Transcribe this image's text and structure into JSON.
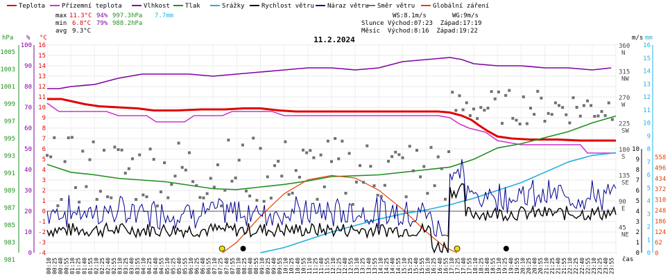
{
  "legend": [
    {
      "label": "Teplota",
      "color": "#e00000"
    },
    {
      "label": "Přízemní teplota",
      "color": "#cc33cc"
    },
    {
      "label": "Vlhkost",
      "color": "#8000a0"
    },
    {
      "label": "Tlak",
      "color": "#209020"
    },
    {
      "label": "Srážky",
      "color": "#20b0e0"
    },
    {
      "label": "Rychlost větru",
      "color": "#000000"
    },
    {
      "label": "Náraz větru",
      "color": "#000090"
    },
    {
      "label": "Směr větru",
      "color": "#707070"
    },
    {
      "label": "Globální záření",
      "color": "#e04000"
    }
  ],
  "stats": {
    "max_label": "max",
    "min_label": "min",
    "avg_label": "avg",
    "max_temp": "11.3°C",
    "max_hum": "94%",
    "max_press": "997.3hPa",
    "rain": "7.7mm",
    "min_temp": "6.8°C",
    "min_hum": "79%",
    "min_press": "988.2hPa",
    "avg_temp": "9.3°C"
  },
  "info": {
    "ws": "WS:8.1m/s",
    "wg": "WG:9m/s",
    "sun": "Slunce Východ:07:23  Západ:17:19",
    "moon": "Měsíc  Východ:8:16  Západ:19:22"
  },
  "title": "11.2.2024",
  "axes": {
    "hpa_label": "hPa",
    "pct_label": "%",
    "temp_label": "°C",
    "ms_label": "m/s",
    "mm_label": "mm",
    "time_label": "čas",
    "hpa_ticks": [
      "1005",
      "1003",
      "1001",
      "999",
      "997",
      "995",
      "993",
      "991",
      "989",
      "987",
      "985",
      "983",
      "981"
    ],
    "pct_ticks": [
      "100",
      "90",
      "80",
      "70",
      "60",
      "50",
      "40",
      "30",
      "20",
      "10",
      "0"
    ],
    "temp_ticks": [
      "16",
      "15",
      "14",
      "13",
      "12",
      "11",
      "10",
      "9",
      "8",
      "7",
      "6",
      "5",
      "4",
      "3",
      "2",
      "1",
      "0",
      "-1",
      "-2",
      "-3",
      "-4"
    ],
    "dir_ticks": [
      {
        "deg": "360",
        "name": "N"
      },
      {
        "deg": "315",
        "name": "NW"
      },
      {
        "deg": "270",
        "name": "W"
      },
      {
        "deg": "225",
        "name": "SW"
      },
      {
        "deg": "180",
        "name": "S"
      },
      {
        "deg": "135",
        "name": "SE"
      },
      {
        "deg": "90",
        "name": "E"
      },
      {
        "deg": "45",
        "name": "NE"
      }
    ],
    "ms_ticks": [
      "10",
      "9",
      "8",
      "7",
      "6",
      "5",
      "4",
      "3",
      "2",
      "1",
      "0"
    ],
    "mm_ticks": [
      "16",
      "15",
      "14",
      "13",
      "12",
      "11",
      "10",
      "9",
      "8",
      "7",
      "6",
      "5",
      "4",
      "3",
      "2",
      "1",
      "0"
    ],
    "rad_ticks": [
      "558",
      "496",
      "434",
      "372",
      "310",
      "248",
      "186",
      "124",
      "62",
      "0"
    ],
    "time_ticks": [
      "00:10",
      "00:25",
      "00:40",
      "00:55",
      "01:10",
      "01:25",
      "01:40",
      "01:55",
      "02:10",
      "02:25",
      "02:40",
      "02:55",
      "03:10",
      "03:25",
      "03:40",
      "03:55",
      "04:10",
      "04:25",
      "04:40",
      "04:55",
      "05:10",
      "05:25",
      "05:40",
      "05:55",
      "06:10",
      "06:25",
      "06:40",
      "06:55",
      "07:10",
      "07:25",
      "07:40",
      "07:55",
      "08:10",
      "08:25",
      "08:40",
      "08:55",
      "09:10",
      "09:25",
      "09:40",
      "09:55",
      "10:10",
      "10:25",
      "10:40",
      "10:55",
      "11:10",
      "11:25",
      "11:40",
      "11:55",
      "12:10",
      "12:25",
      "12:40",
      "12:55",
      "13:10",
      "13:25",
      "13:40",
      "13:55",
      "14:10",
      "14:25",
      "14:40",
      "14:55",
      "15:10",
      "15:25",
      "15:40",
      "15:55",
      "16:10",
      "16:25",
      "16:40",
      "16:55",
      "17:10",
      "17:25",
      "17:40",
      "17:55",
      "18:10",
      "18:25",
      "18:40",
      "18:55",
      "19:10",
      "19:25",
      "19:40",
      "19:55",
      "20:10",
      "20:25",
      "20:40",
      "20:55",
      "21:10",
      "21:25",
      "21:40",
      "21:55",
      "22:10",
      "22:25",
      "22:40",
      "22:55",
      "23:10",
      "23:25",
      "23:40",
      "23:55"
    ]
  },
  "chart_data": {
    "type": "line",
    "title": "11.2.2024",
    "x_unit": "hour",
    "temp_range": [
      -4,
      16
    ],
    "series": [
      {
        "name": "Teplota",
        "color": "#e00000",
        "points": [
          [
            0,
            10.8
          ],
          [
            0.6,
            10.8
          ],
          [
            1,
            10.6
          ],
          [
            1.6,
            10.3
          ],
          [
            2.2,
            10.1
          ],
          [
            3,
            10.0
          ],
          [
            3.8,
            9.9
          ],
          [
            4.5,
            9.7
          ],
          [
            5.5,
            9.7
          ],
          [
            6.5,
            9.8
          ],
          [
            7.5,
            9.8
          ],
          [
            8.3,
            9.9
          ],
          [
            9,
            9.9
          ],
          [
            9.8,
            9.7
          ],
          [
            10.5,
            9.6
          ],
          [
            11.5,
            9.6
          ],
          [
            12.5,
            9.6
          ],
          [
            13.5,
            9.6
          ],
          [
            14.5,
            9.6
          ],
          [
            15.5,
            9.6
          ],
          [
            16.5,
            9.6
          ],
          [
            17,
            9.5
          ],
          [
            17.5,
            9.2
          ],
          [
            17.9,
            8.8
          ],
          [
            18.2,
            8.3
          ],
          [
            18.6,
            7.7
          ],
          [
            19,
            7.2
          ],
          [
            19.6,
            7.0
          ],
          [
            20.4,
            6.9
          ],
          [
            21.5,
            6.9
          ],
          [
            22.5,
            6.8
          ],
          [
            24,
            6.8
          ]
        ]
      },
      {
        "name": "Přízemní teplota",
        "color": "#cc33cc",
        "points": [
          [
            0,
            10.4
          ],
          [
            0.5,
            9.6
          ],
          [
            2.5,
            9.6
          ],
          [
            3.0,
            9.2
          ],
          [
            4.2,
            9.2
          ],
          [
            4.6,
            8.6
          ],
          [
            5.8,
            8.6
          ],
          [
            6.2,
            9.2
          ],
          [
            7.4,
            9.2
          ],
          [
            7.8,
            9.6
          ],
          [
            9.5,
            9.6
          ],
          [
            10,
            9.2
          ],
          [
            16.5,
            9.2
          ],
          [
            17,
            9.0
          ],
          [
            17.4,
            8.4
          ],
          [
            17.8,
            8.0
          ],
          [
            18.5,
            7.6
          ],
          [
            19.0,
            6.8
          ],
          [
            20,
            6.4
          ],
          [
            22.5,
            6.4
          ],
          [
            22.8,
            5.6
          ],
          [
            24,
            5.6
          ]
        ]
      },
      {
        "name": "Vlhkost",
        "color": "#8000a0",
        "pct": true,
        "points": [
          [
            0,
            79
          ],
          [
            0.5,
            79
          ],
          [
            1,
            80
          ],
          [
            2,
            81
          ],
          [
            3,
            84
          ],
          [
            4,
            86
          ],
          [
            5,
            86
          ],
          [
            6,
            86
          ],
          [
            7,
            85
          ],
          [
            8,
            86
          ],
          [
            9,
            87
          ],
          [
            10,
            88
          ],
          [
            11,
            89
          ],
          [
            12,
            89
          ],
          [
            13,
            88
          ],
          [
            14,
            89
          ],
          [
            15,
            92
          ],
          [
            16,
            93
          ],
          [
            17,
            94
          ],
          [
            17.5,
            93
          ],
          [
            18,
            91
          ],
          [
            19,
            90
          ],
          [
            20,
            90
          ],
          [
            21,
            89
          ],
          [
            22,
            89
          ],
          [
            23,
            88
          ],
          [
            23.8,
            89
          ]
        ]
      },
      {
        "name": "Tlak",
        "color": "#209020",
        "hpa": true,
        "points": [
          [
            0,
            991.2
          ],
          [
            1,
            990.3
          ],
          [
            2,
            990.0
          ],
          [
            3,
            989.6
          ],
          [
            4,
            989.4
          ],
          [
            5,
            989.2
          ],
          [
            6,
            988.8
          ],
          [
            7,
            988.4
          ],
          [
            8,
            988.3
          ],
          [
            9,
            988.6
          ],
          [
            10,
            988.9
          ],
          [
            11,
            989.3
          ],
          [
            12,
            989.8
          ],
          [
            13,
            989.9
          ],
          [
            14,
            990.0
          ],
          [
            15,
            990.3
          ],
          [
            16,
            990.6
          ],
          [
            17,
            990.9
          ],
          [
            18,
            991.8
          ],
          [
            19,
            993.1
          ],
          [
            20,
            993.6
          ],
          [
            21,
            994.3
          ],
          [
            22,
            995.0
          ],
          [
            23,
            996.0
          ],
          [
            24,
            996.8
          ]
        ]
      },
      {
        "name": "Srážky",
        "color": "#20b0e0",
        "mm": true,
        "points": [
          [
            9,
            0
          ],
          [
            10,
            0.4
          ],
          [
            11,
            1.0
          ],
          [
            12,
            1.6
          ],
          [
            13,
            2.1
          ],
          [
            14,
            2.6
          ],
          [
            15,
            3.0
          ],
          [
            16,
            3.3
          ],
          [
            17,
            3.7
          ],
          [
            18,
            4.2
          ],
          [
            19,
            4.8
          ],
          [
            20,
            5.4
          ],
          [
            21,
            6.2
          ],
          [
            22,
            7.0
          ],
          [
            23,
            7.5
          ],
          [
            24,
            7.7
          ]
        ]
      },
      {
        "name": "Globální záření",
        "color": "#e04000",
        "rad": true,
        "points": [
          [
            7.4,
            0
          ],
          [
            8,
            60
          ],
          [
            9,
            210
          ],
          [
            10,
            340
          ],
          [
            11,
            420
          ],
          [
            12,
            445
          ],
          [
            13,
            430
          ],
          [
            14,
            360
          ],
          [
            15,
            250
          ],
          [
            16,
            120
          ],
          [
            16.8,
            30
          ],
          [
            17.3,
            0
          ]
        ]
      }
    ]
  }
}
